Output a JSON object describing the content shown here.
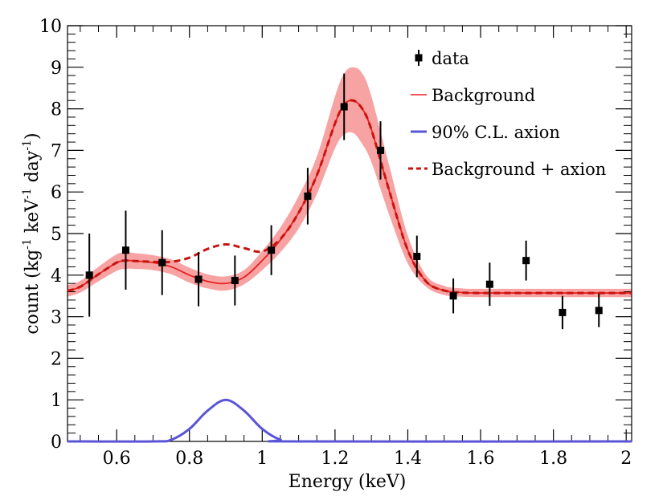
{
  "chart_data": {
    "type": "line",
    "xlabel": "Energy (keV)",
    "ylabel": {
      "base": "count (kg",
      "sup1": "-1",
      "mid1": " keV",
      "sup2": "-1",
      "mid2": " day",
      "sup3": "-1",
      "end": ")"
    },
    "xlim": [
      0.465,
      2.015
    ],
    "ylim": [
      0,
      10
    ],
    "x_ticks": [
      0.6,
      0.8,
      1.0,
      1.2,
      1.4,
      1.6,
      1.8,
      2.0
    ],
    "x_tick_labels": [
      "0.6",
      "0.8",
      "1",
      "1.2",
      "1.4",
      "1.6",
      "1.8",
      "2"
    ],
    "y_ticks": [
      0,
      1,
      2,
      3,
      4,
      5,
      6,
      7,
      8,
      9,
      10
    ],
    "y_tick_labels": [
      "0",
      "1",
      "2",
      "3",
      "4",
      "5",
      "6",
      "7",
      "8",
      "9",
      "10"
    ],
    "legend": {
      "placement": "top-right",
      "entries": [
        "data",
        "Background",
        "90% C.L. axion",
        "Background + axion"
      ]
    },
    "colors": {
      "data": "#000000",
      "background": "#e8211e",
      "band": "#f7a3a3",
      "axion": "#5a55d6",
      "combined": "#c8140f"
    },
    "series": [
      {
        "name": "data",
        "x": [
          0.525,
          0.625,
          0.725,
          0.825,
          0.925,
          1.025,
          1.125,
          1.225,
          1.325,
          1.425,
          1.525,
          1.625,
          1.725,
          1.825,
          1.925
        ],
        "y": [
          4.0,
          4.6,
          4.3,
          3.9,
          3.87,
          4.6,
          5.9,
          8.05,
          7.0,
          4.45,
          3.5,
          3.78,
          4.35,
          3.1,
          3.15
        ],
        "err": [
          1.0,
          0.95,
          0.78,
          0.65,
          0.6,
          0.6,
          0.68,
          0.8,
          0.7,
          0.5,
          0.42,
          0.52,
          0.48,
          0.4,
          0.4
        ]
      },
      {
        "name": "Background",
        "x": [
          0.465,
          0.5,
          0.55,
          0.6,
          0.625,
          0.65,
          0.7,
          0.75,
          0.8,
          0.85,
          0.9,
          0.95,
          1.0,
          1.05,
          1.1,
          1.15,
          1.2,
          1.225,
          1.25,
          1.275,
          1.3,
          1.35,
          1.4,
          1.45,
          1.5,
          1.55,
          1.6,
          1.8,
          2.015
        ],
        "y": [
          3.62,
          3.72,
          4.02,
          4.3,
          4.35,
          4.34,
          4.3,
          4.2,
          4.0,
          3.85,
          3.8,
          3.95,
          4.35,
          4.85,
          5.5,
          6.4,
          7.65,
          8.1,
          8.2,
          8.0,
          7.5,
          6.0,
          4.6,
          3.85,
          3.63,
          3.58,
          3.57,
          3.57,
          3.57
        ],
        "band_lower": [
          3.48,
          3.58,
          3.85,
          4.1,
          4.15,
          4.15,
          4.12,
          4.02,
          3.82,
          3.68,
          3.63,
          3.78,
          4.12,
          4.55,
          5.12,
          5.95,
          7.05,
          7.38,
          7.42,
          7.15,
          6.72,
          5.42,
          4.28,
          3.72,
          3.52,
          3.48,
          3.47,
          3.47,
          3.47
        ],
        "band_upper": [
          3.76,
          3.86,
          4.2,
          4.5,
          4.55,
          4.53,
          4.48,
          4.38,
          4.18,
          4.02,
          3.97,
          4.12,
          4.58,
          5.15,
          5.9,
          6.85,
          8.3,
          8.85,
          9.0,
          8.85,
          8.3,
          6.6,
          4.95,
          4.0,
          3.74,
          3.68,
          3.67,
          3.67,
          3.67
        ]
      },
      {
        "name": "90% C.L. axion",
        "x": [
          0.465,
          0.7,
          0.75,
          0.8,
          0.85,
          0.9,
          0.95,
          1.0,
          1.05,
          1.1,
          2.015
        ],
        "y": [
          0,
          0,
          0.04,
          0.3,
          0.74,
          1.0,
          0.74,
          0.3,
          0.04,
          0,
          0
        ]
      },
      {
        "name": "Background + axion",
        "x": [
          0.465,
          0.5,
          0.55,
          0.6,
          0.625,
          0.65,
          0.7,
          0.75,
          0.8,
          0.85,
          0.9,
          0.95,
          1.0,
          1.05,
          1.1,
          1.15,
          1.2,
          1.225,
          1.25,
          1.275,
          1.3,
          1.35,
          1.4,
          1.45,
          1.5,
          1.55,
          1.6,
          1.8,
          2.015
        ],
        "y": [
          3.62,
          3.72,
          4.02,
          4.3,
          4.35,
          4.34,
          4.32,
          4.32,
          4.42,
          4.63,
          4.74,
          4.65,
          4.57,
          4.87,
          5.5,
          6.4,
          7.65,
          8.1,
          8.2,
          8.0,
          7.5,
          6.0,
          4.6,
          3.85,
          3.63,
          3.58,
          3.57,
          3.57,
          3.57
        ]
      }
    ]
  }
}
